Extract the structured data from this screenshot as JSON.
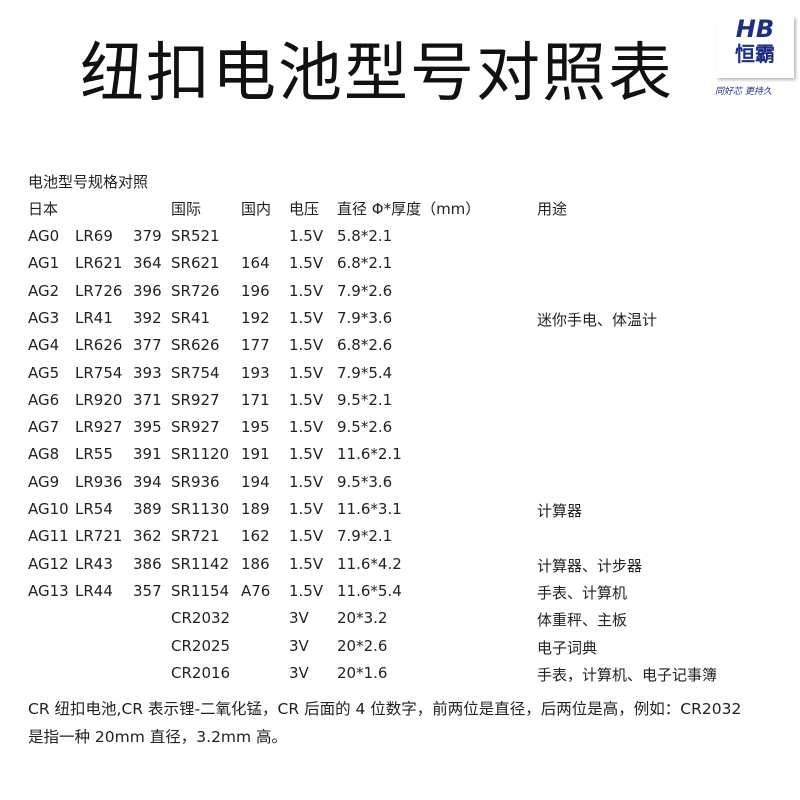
{
  "title": "纽扣电池型号对照表",
  "logo": {
    "brand": "HB",
    "brand_cn": "恒霸",
    "tagline": "同好芯 更持久",
    "color": "#1c2e86"
  },
  "subtitle": "电池型号规格对照",
  "headers": {
    "japan": "日本",
    "intl": "国际",
    "domestic": "国内",
    "voltage": "电压",
    "size": "直径 Φ*厚度（mm）",
    "usage": "用途"
  },
  "rows": [
    [
      "AG0",
      "LR69",
      "379",
      "SR521",
      "",
      "1.5V",
      "5.8*2.1",
      ""
    ],
    [
      "AG1",
      "LR621",
      "364",
      "SR621",
      "164",
      "1.5V",
      "6.8*2.1",
      ""
    ],
    [
      "AG2",
      "LR726",
      "396",
      "SR726",
      "196",
      "1.5V",
      "7.9*2.6",
      ""
    ],
    [
      "AG3",
      "LR41",
      "392",
      "SR41",
      "192",
      "1.5V",
      "7.9*3.6",
      "迷你手电、体温计"
    ],
    [
      "AG4",
      "LR626",
      "377",
      "SR626",
      "177",
      "1.5V",
      "6.8*2.6",
      ""
    ],
    [
      "AG5",
      "LR754",
      "393",
      "SR754",
      "193",
      "1.5V",
      "7.9*5.4",
      ""
    ],
    [
      "AG6",
      "LR920",
      "371",
      "SR927",
      "171",
      "1.5V",
      "9.5*2.1",
      ""
    ],
    [
      "AG7",
      "LR927",
      "395",
      "SR927",
      "195",
      "1.5V",
      "9.5*2.6",
      ""
    ],
    [
      "AG8",
      "LR55",
      "391",
      "SR1120",
      "191",
      "1.5V",
      "11.6*2.1",
      ""
    ],
    [
      "AG9",
      "LR936",
      "394",
      "SR936",
      "194",
      "1.5V",
      "9.5*3.6",
      ""
    ],
    [
      "AG10",
      "LR54",
      "389",
      "SR1130",
      "189",
      "1.5V",
      "11.6*3.1",
      "计算器"
    ],
    [
      "AG11",
      "LR721",
      "362",
      "SR721",
      "162",
      "1.5V",
      "7.9*2.1",
      ""
    ],
    [
      "AG12",
      "LR43",
      "386",
      "SR1142",
      "186",
      "1.5V",
      "11.6*4.2",
      "计算器、计步器"
    ],
    [
      "AG13",
      "LR44",
      "357",
      "SR1154",
      "A76",
      "1.5V",
      "11.6*5.4",
      "手表、计算机"
    ],
    [
      "",
      "",
      "",
      "CR2032",
      "",
      "3V",
      "20*3.2",
      "体重秤、主板"
    ],
    [
      "",
      "",
      "",
      "CR2025",
      "",
      "3V",
      "20*2.6",
      "电子词典"
    ],
    [
      "",
      "",
      "",
      "CR2016",
      "",
      "3V",
      "20*1.6",
      "手表，计算机、电子记事簿"
    ]
  ],
  "footnote": [
    "CR 纽扣电池,CR 表示锂-二氧化锰，CR 后面的 4 位数字，前两位是直径，后两位是高，例如：CR2032",
    "是指一种 20mm 直径，3.2mm 高。"
  ]
}
